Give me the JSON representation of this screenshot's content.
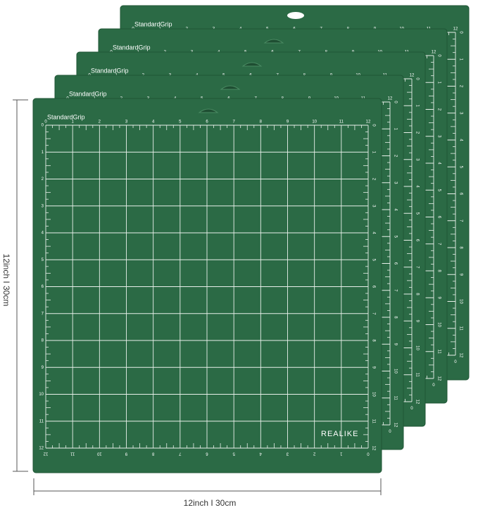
{
  "mats": [
    {
      "label": "StandardGrip"
    },
    {
      "label": "StandardGrip"
    },
    {
      "label": "StandardGrip"
    },
    {
      "label": "StandardGrip"
    },
    {
      "label": "StandardGrip"
    }
  ],
  "brand": "REALIKE",
  "ruler_numbers": [
    0,
    1,
    2,
    3,
    4,
    5,
    6,
    7,
    8,
    9,
    10,
    11,
    12
  ],
  "dimensions": {
    "height": "12inch I 30cm",
    "width": "12inch I 30cm"
  }
}
